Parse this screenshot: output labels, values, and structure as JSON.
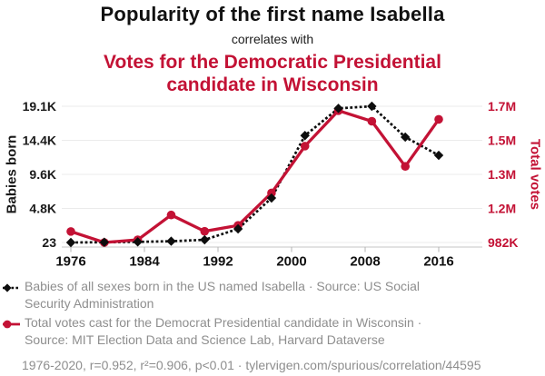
{
  "header": {
    "title": "Popularity of the first name Isabella",
    "connector": "correlates with",
    "correlate_lines": [
      "Votes for the Democratic Presidential",
      "candidate in Wisconsin"
    ]
  },
  "chart_data": {
    "type": "line",
    "x_years": [
      1976,
      1980,
      1984,
      1988,
      1992,
      1996,
      2000,
      2004,
      2008,
      2012,
      2016,
      2020
    ],
    "x_tick_labels": [
      "1976",
      "1984",
      "1992",
      "2000",
      "2008",
      "2016"
    ],
    "x_range": [
      1976,
      2020
    ],
    "grid": "horizontal",
    "left_axis": {
      "title": "Babies born",
      "min": 23,
      "max": 19100,
      "tick_labels": [
        "19.1K",
        "14.4K",
        "9.6K",
        "4.8K",
        "23"
      ]
    },
    "right_axis": {
      "title": "Total votes",
      "min": 982000,
      "max": 1700000,
      "tick_labels": [
        "1.7M",
        "1.5M",
        "1.3M",
        "1.2M",
        "982K"
      ]
    },
    "series": [
      {
        "name": "Babies of all sexes born in the US named Isabella",
        "axis": "left",
        "color": "#0d0d0d",
        "marker": "diamond",
        "line_style": "dashed",
        "values": [
          23,
          60,
          110,
          200,
          400,
          1930,
          6250,
          15000,
          18800,
          19100,
          14780,
          12230
        ]
      },
      {
        "name": "Total votes cast for the Democrat Presidential candidate in Wisconsin",
        "axis": "right",
        "color": "#c31235",
        "marker": "circle",
        "line_style": "solid",
        "values": [
          1040000,
          982000,
          996000,
          1127000,
          1041000,
          1072000,
          1243000,
          1490000,
          1677000,
          1621000,
          1383000,
          1631000
        ]
      }
    ]
  },
  "legend": [
    {
      "marker": "black-diamond-dashed",
      "lines": [
        "Babies of all sexes born in the US named Isabella · Source: US Social",
        "Security Administration"
      ]
    },
    {
      "marker": "red-circle-solid",
      "lines": [
        "Total votes cast for the Democrat Presidential candidate in Wisconsin ·",
        "Source: MIT Election Data and Science Lab, Harvard Dataverse"
      ]
    }
  ],
  "footer": {
    "text": "1976-2020, r=0.952, r²=0.906, p<0.01 · tylervigen.com/spurious/correlation/44595"
  },
  "colors": {
    "accent_red": "#c31235",
    "series_black": "#0d0d0d",
    "muted_text": "#8e8e8e",
    "gridline": "#ebebeb",
    "axis_line": "#c4c4c4"
  }
}
